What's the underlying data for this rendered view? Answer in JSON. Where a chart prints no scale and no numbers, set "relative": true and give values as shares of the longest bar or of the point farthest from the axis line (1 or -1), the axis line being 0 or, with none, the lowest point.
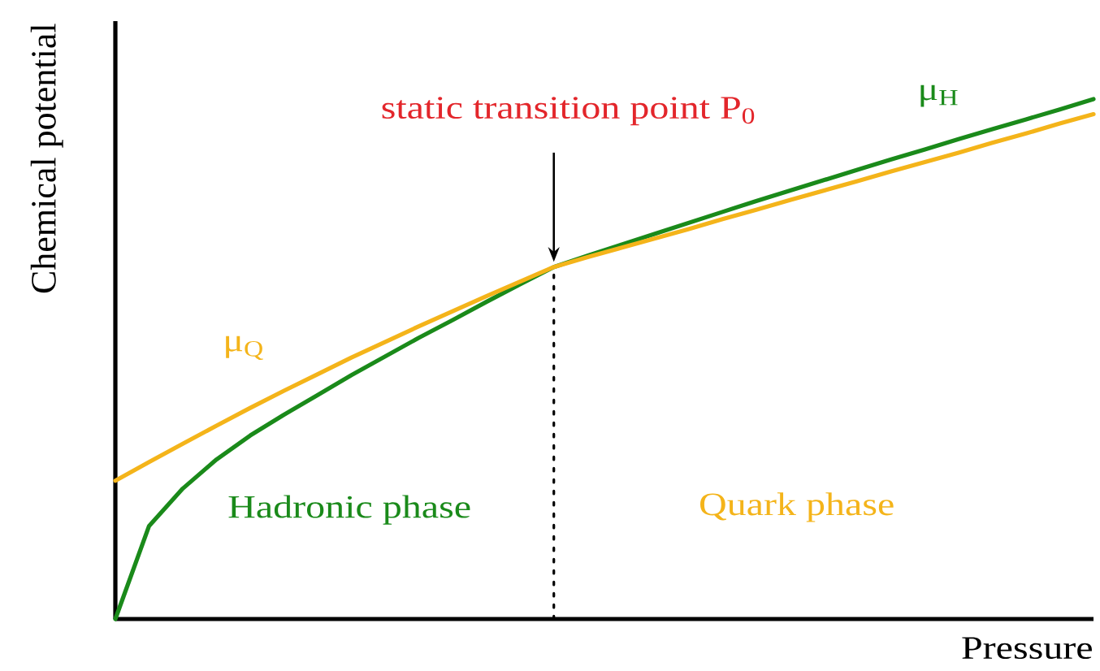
{
  "chart_data": {
    "type": "line",
    "relative": true,
    "xlabel": "Pressure",
    "ylabel": "Chemical potential",
    "categories": [
      null,
      null,
      null,
      null,
      null,
      null,
      null,
      null,
      null,
      null,
      null,
      null,
      null,
      null,
      null,
      null,
      null,
      null,
      null,
      null,
      null,
      null,
      null,
      null,
      null,
      null,
      null,
      null,
      null,
      null
    ],
    "series": [
      {
        "name": "μ$_{H}$",
        "color": "#1a8a1a",
        "values": [
          0,
          0.179,
          0.251,
          0.307,
          0.353,
          0.393,
          0.431,
          0.469,
          0.505,
          0.541,
          0.575,
          0.61,
          0.644,
          0.677,
          0.699,
          0.72,
          0.741,
          0.762,
          0.783,
          0.804,
          0.824,
          0.844,
          0.864,
          0.884,
          0.903,
          0.923,
          0.942,
          0.961,
          0.98,
          1
        ]
      },
      {
        "name": "μ$_{Q}$",
        "color": "#f4b41a",
        "values": [
          0.266,
          0.302,
          0.337,
          0.372,
          0.406,
          0.439,
          0.471,
          0.503,
          0.533,
          0.563,
          0.592,
          0.621,
          0.649,
          0.677,
          0.696,
          0.714,
          0.732,
          0.75,
          0.769,
          0.787,
          0.806,
          0.824,
          0.842,
          0.861,
          0.879,
          0.897,
          0.916,
          0.934,
          0.953,
          0.971
        ]
      }
    ],
    "annotations": [
      "static transition point P$_{0}$",
      "Hadronic phase",
      "Quark phase"
    ],
    "line_style": "solid"
  }
}
